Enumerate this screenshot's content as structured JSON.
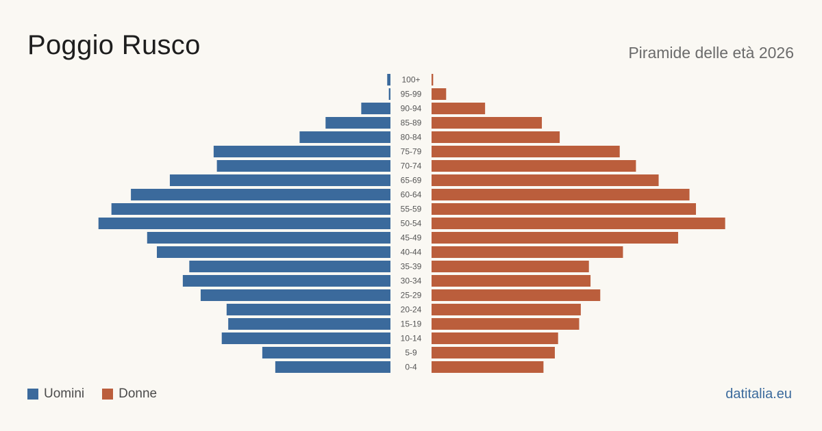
{
  "header": {
    "title": "Poggio Rusco",
    "subtitle": "Piramide delle età 2026"
  },
  "legend": {
    "men_label": "Uomini",
    "women_label": "Donne"
  },
  "footer": {
    "brand": "datitalia.eu"
  },
  "colors": {
    "men": "#3b6a9c",
    "women": "#bb5e3c",
    "age_label": "#555555"
  },
  "chart_data": {
    "type": "bar",
    "orientation": "horizontal-pyramid",
    "title": "Poggio Rusco",
    "subtitle": "Piramide delle età 2026",
    "categories": [
      "100+",
      "95-99",
      "90-94",
      "85-89",
      "80-84",
      "75-79",
      "70-74",
      "65-69",
      "60-64",
      "55-59",
      "50-54",
      "45-49",
      "40-44",
      "35-39",
      "30-34",
      "25-29",
      "20-24",
      "15-19",
      "10-14",
      "5-9",
      "0-4"
    ],
    "series": [
      {
        "name": "Uomini",
        "side": "left",
        "values": [
          2,
          1,
          18,
          40,
          56,
          109,
          107,
          136,
          160,
          172,
          180,
          150,
          144,
          124,
          128,
          117,
          101,
          100,
          104,
          79,
          71
        ]
      },
      {
        "name": "Donne",
        "side": "right",
        "values": [
          1,
          9,
          33,
          68,
          79,
          116,
          126,
          140,
          159,
          163,
          181,
          152,
          118,
          97,
          98,
          104,
          92,
          91,
          78,
          76,
          69
        ]
      }
    ],
    "xlim": [
      0,
      182
    ],
    "grid": false,
    "legend_position": "bottom-left"
  }
}
